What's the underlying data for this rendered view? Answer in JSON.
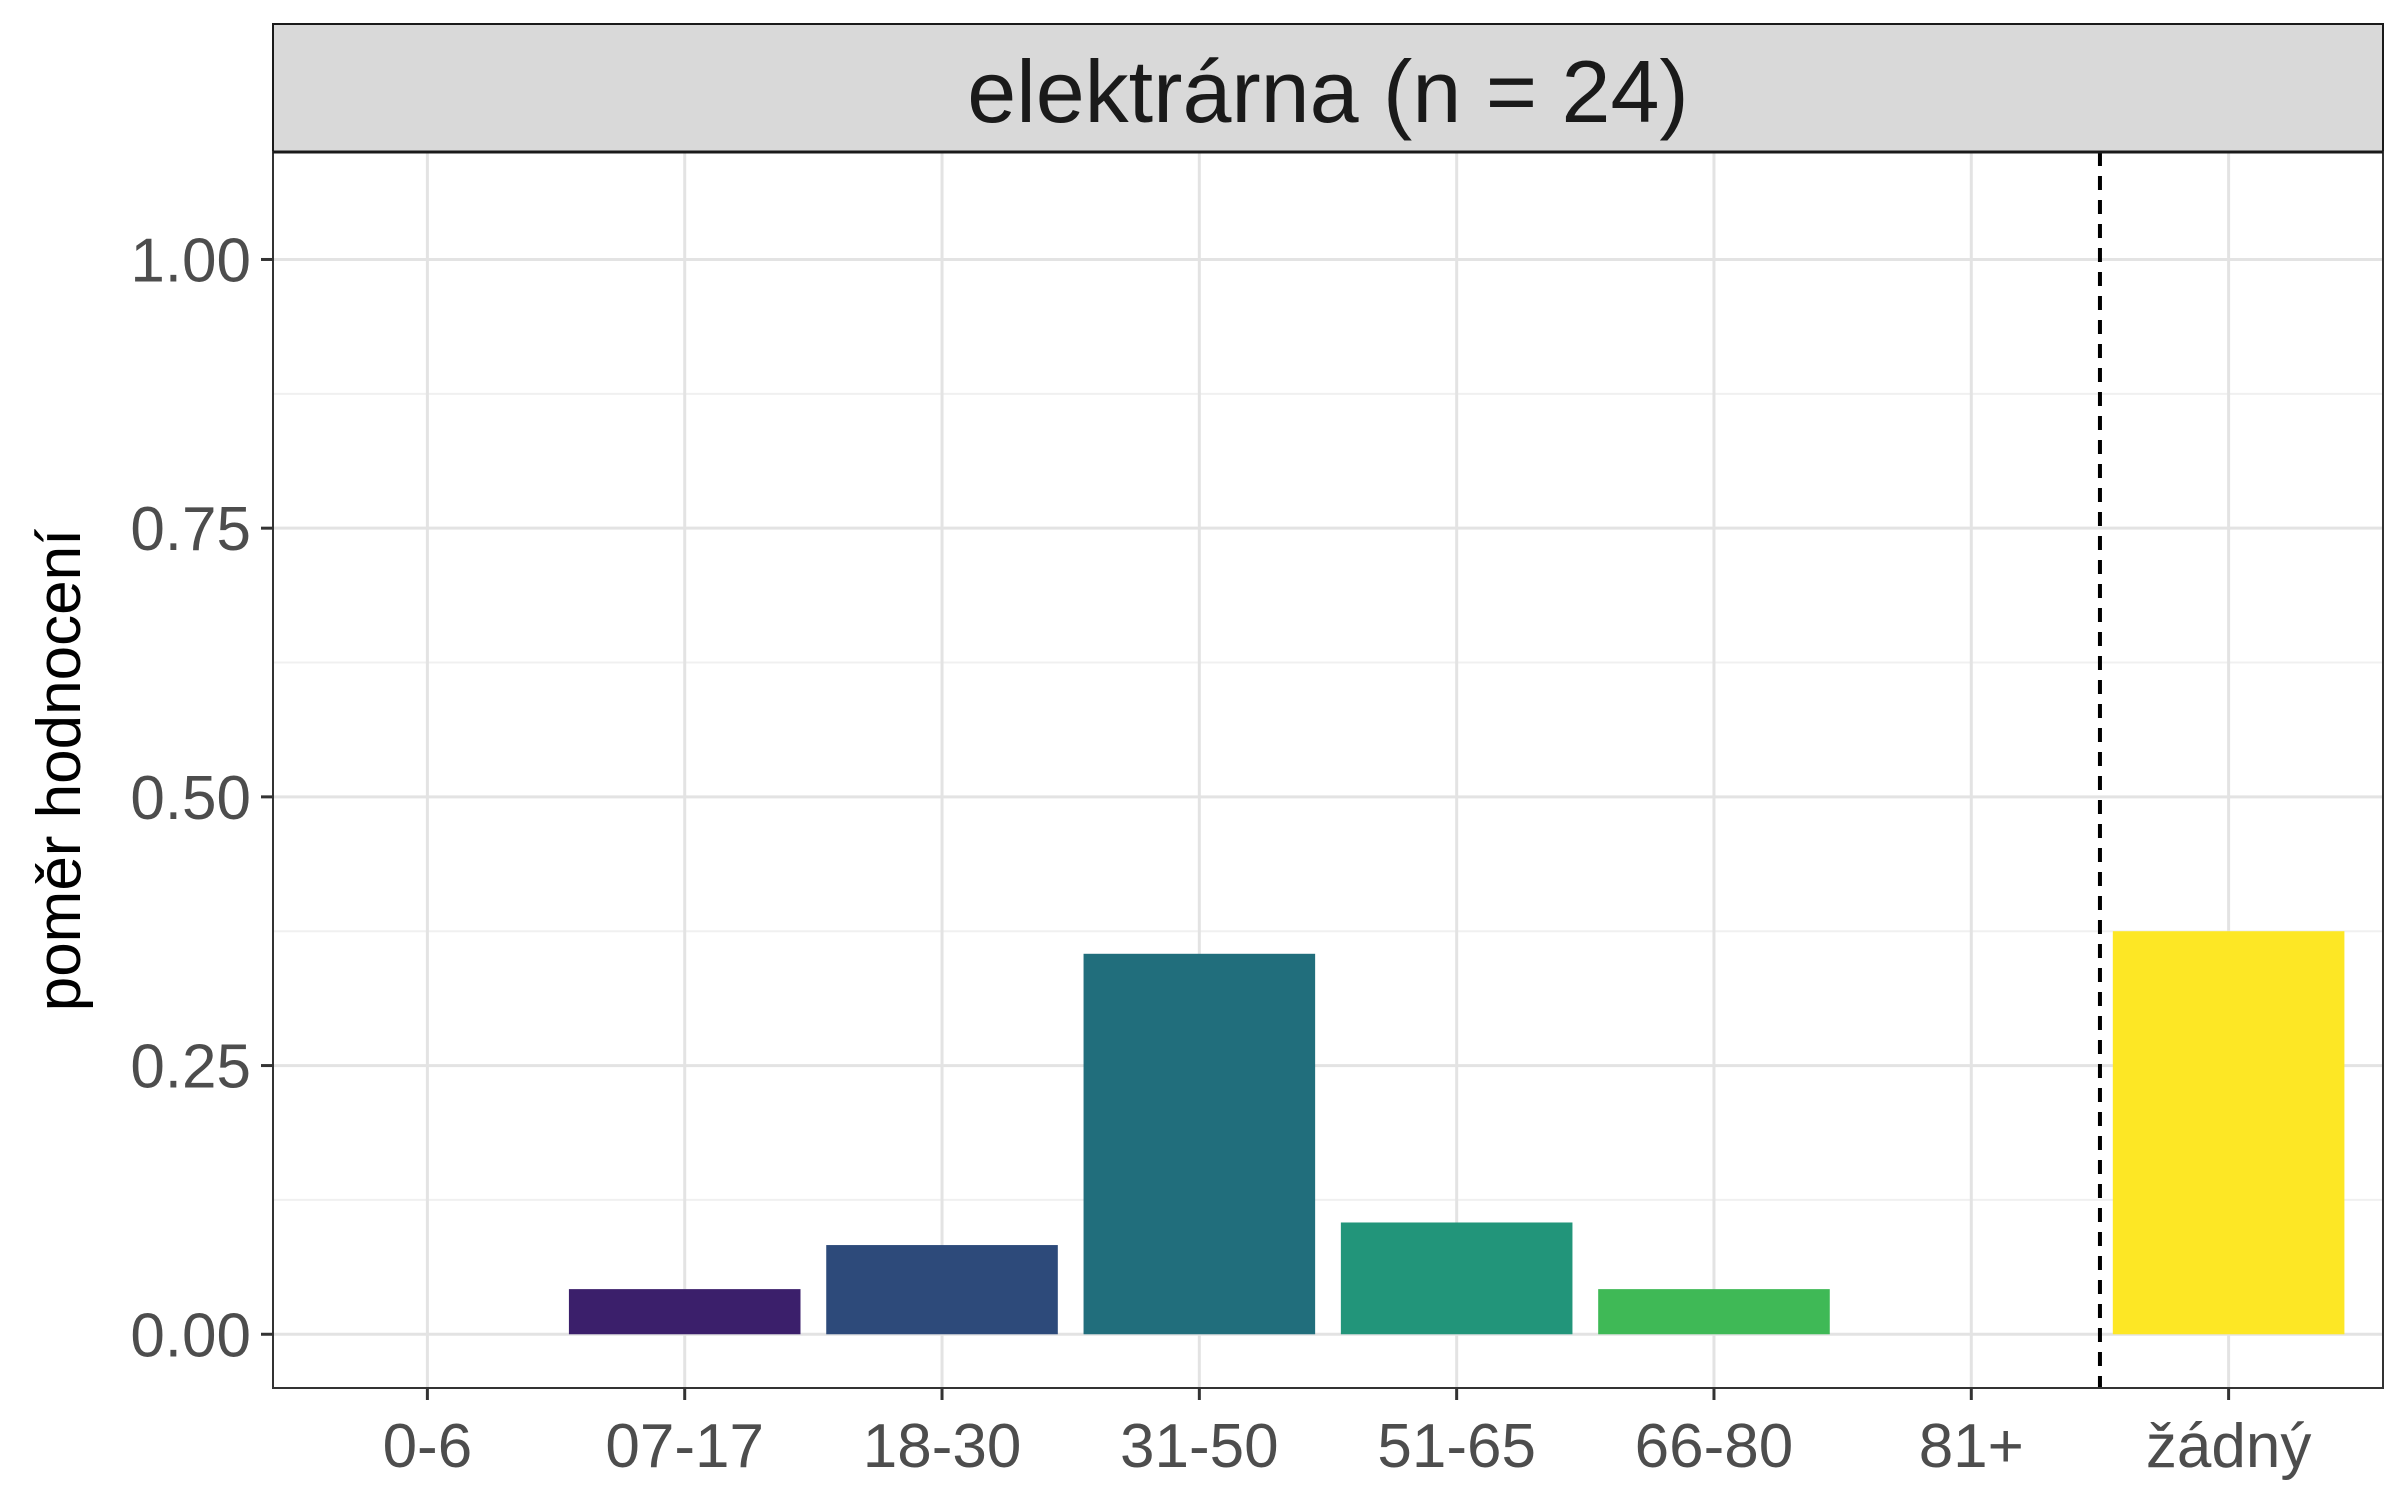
{
  "strip_title": "elektrárna (n = 24)",
  "chart_data": {
    "type": "bar",
    "title": "elektrárna (n = 24)",
    "xlabel": "",
    "ylabel": "poměr hodnocení",
    "categories": [
      "0-6",
      "07-17",
      "18-30",
      "31-50",
      "51-65",
      "66-80",
      "81+",
      "žádný"
    ],
    "values": [
      0.0,
      0.042,
      0.083,
      0.354,
      0.104,
      0.042,
      0.0,
      0.375
    ],
    "colors": [
      "#440154",
      "#3b1f6b",
      "#2d4a7a",
      "#216e7c",
      "#22957a",
      "#3fb956",
      "#7ad151",
      "#fde725"
    ],
    "ylim": [
      -0.05,
      1.1
    ],
    "yticks": [
      0.0,
      0.25,
      0.5,
      0.75,
      1.0
    ],
    "ytick_labels": [
      "0.00",
      "0.25",
      "0.50",
      "0.75",
      "1.00"
    ],
    "reference_line": {
      "between": [
        "81+",
        "žádný"
      ],
      "style": "dashed"
    },
    "grid": true,
    "legend": "none"
  }
}
